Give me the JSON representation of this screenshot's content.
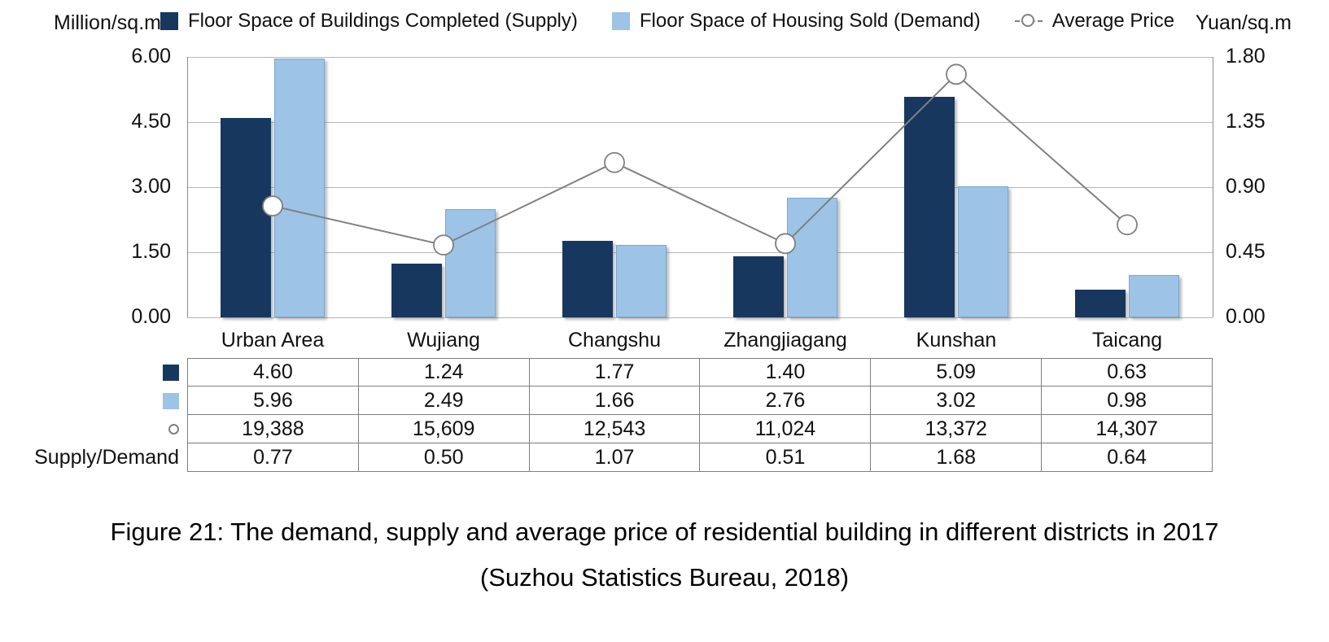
{
  "header": {
    "left_unit": "Million/sq.m",
    "right_unit": "Yuan/sq.m"
  },
  "chart_data": {
    "type": "bar",
    "subtype": "grouped-bars-with-line-overlay",
    "categories": [
      "Urban Area",
      "Wujiang",
      "Changshu",
      "Zhangjiagang",
      "Kunshan",
      "Taicang"
    ],
    "series": [
      {
        "name": "Floor Space of Buildings Completed (Supply)",
        "type": "bar",
        "axis": "left",
        "color": "#17375E",
        "values": [
          4.6,
          1.24,
          1.77,
          1.4,
          5.09,
          0.63
        ]
      },
      {
        "name": "Floor Space of Housing Sold (Demand)",
        "type": "bar",
        "axis": "left",
        "color": "#9DC3E6",
        "values": [
          5.96,
          2.49,
          1.66,
          2.76,
          3.02,
          0.98
        ]
      },
      {
        "name": "Average Price",
        "type": "line",
        "axis": "right",
        "color": "#808080",
        "marker": "open-circle",
        "values_yuan": [
          19388,
          15609,
          12543,
          11024,
          13372,
          14307
        ],
        "plotted_right_axis_values": [
          0.77,
          0.5,
          1.07,
          0.51,
          1.68,
          0.64
        ]
      }
    ],
    "supply_demand_ratio": [
      0.77,
      0.5,
      1.07,
      0.51,
      1.68,
      0.64
    ],
    "left_axis": {
      "label": "Million/sq.m",
      "min": 0,
      "max": 6,
      "ticks": [
        "6.00",
        "4.50",
        "3.00",
        "1.50",
        "0.00"
      ]
    },
    "right_axis": {
      "label": "Yuan/sq.m",
      "min": 0,
      "max": 1.8,
      "ticks": [
        "1.80",
        "1.35",
        "0.90",
        "0.45",
        "0.00"
      ]
    },
    "grid": true,
    "legend_position": "top"
  },
  "table": {
    "rows": [
      {
        "key": "supply-swatch",
        "label": "",
        "values": [
          "4.60",
          "1.24",
          "1.77",
          "1.40",
          "5.09",
          "0.63"
        ]
      },
      {
        "key": "demand-swatch",
        "label": "",
        "values": [
          "5.96",
          "2.49",
          "1.66",
          "2.76",
          "3.02",
          "0.98"
        ]
      },
      {
        "key": "price-marker",
        "label": "",
        "values": [
          "19,388",
          "15,609",
          "12,543",
          "11,024",
          "13,372",
          "14,307"
        ]
      },
      {
        "key": "ratio",
        "label": "Supply/Demand",
        "values": [
          "0.77",
          "0.50",
          "1.07",
          "0.51",
          "1.68",
          "0.64"
        ]
      }
    ]
  },
  "caption": {
    "line1": "Figure 21: The demand, supply and average price of residential building in different districts in 2017",
    "line2": "(Suzhou Statistics Bureau, 2018)"
  }
}
